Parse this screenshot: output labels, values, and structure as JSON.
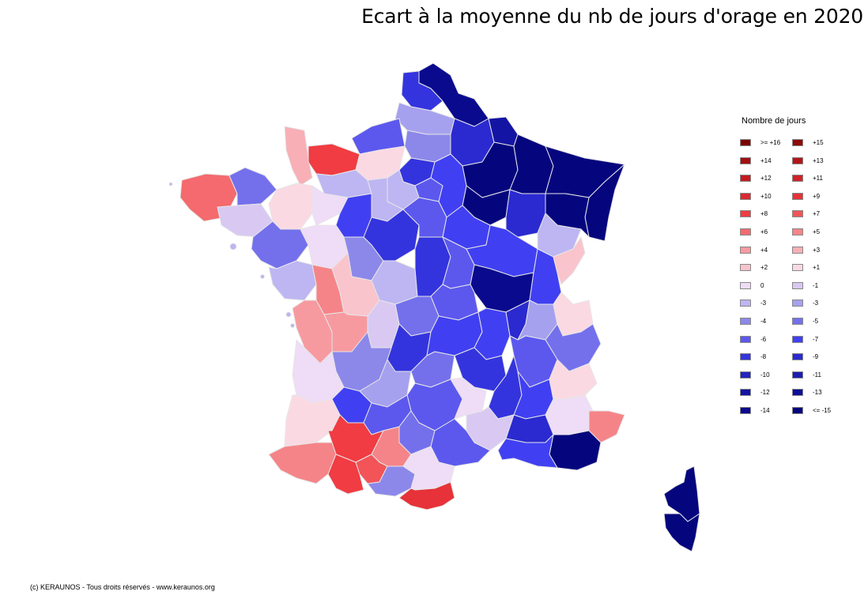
{
  "title": "Ecart à la moyenne du nb de jours d'orage en 2020",
  "legend": {
    "title": "Nombre de jours",
    "items": [
      {
        "label": ">= +16",
        "color": "#7a0000"
      },
      {
        "label": "+15",
        "color": "#8f0a0a"
      },
      {
        "label": "+14",
        "color": "#a30f12"
      },
      {
        "label": "+13",
        "color": "#b31519"
      },
      {
        "label": "+12",
        "color": "#c41a1f"
      },
      {
        "label": "+11",
        "color": "#d02228"
      },
      {
        "label": "+10",
        "color": "#dc2a30"
      },
      {
        "label": "+9",
        "color": "#e63238"
      },
      {
        "label": "+8",
        "color": "#f03c42"
      },
      {
        "label": "+7",
        "color": "#f25458"
      },
      {
        "label": "+6",
        "color": "#f46a6e"
      },
      {
        "label": "+5",
        "color": "#f58488"
      },
      {
        "label": "+4",
        "color": "#f79aa0"
      },
      {
        "label": "+3",
        "color": "#f8afb6"
      },
      {
        "label": "+2",
        "color": "#f9c4cc"
      },
      {
        "label": "+1",
        "color": "#fbd9e3"
      },
      {
        "label": "0",
        "color": "#efdcf6"
      },
      {
        "label": "-1",
        "color": "#d9c9f2"
      },
      {
        "label": "-3",
        "color": "#bdb6f2"
      },
      {
        "label": "-3",
        "color": "#a6a1ee"
      },
      {
        "label": "-4",
        "color": "#8c88ea"
      },
      {
        "label": "-5",
        "color": "#7470ec"
      },
      {
        "label": "-6",
        "color": "#5c58ee"
      },
      {
        "label": "-7",
        "color": "#4040f2"
      },
      {
        "label": "-8",
        "color": "#3434de"
      },
      {
        "label": "-9",
        "color": "#2a2ad0"
      },
      {
        "label": "-10",
        "color": "#2222c0"
      },
      {
        "label": "-11",
        "color": "#1c1cb2"
      },
      {
        "label": "-12",
        "color": "#1414a4"
      },
      {
        "label": "-13",
        "color": "#0f0f98"
      },
      {
        "label": "-14",
        "color": "#0a0a8e"
      },
      {
        "label": "<= -15",
        "color": "#05057e"
      }
    ]
  },
  "copyright": "(c) KERAUNOS - Tous droits réservés - www.keraunos.org"
}
